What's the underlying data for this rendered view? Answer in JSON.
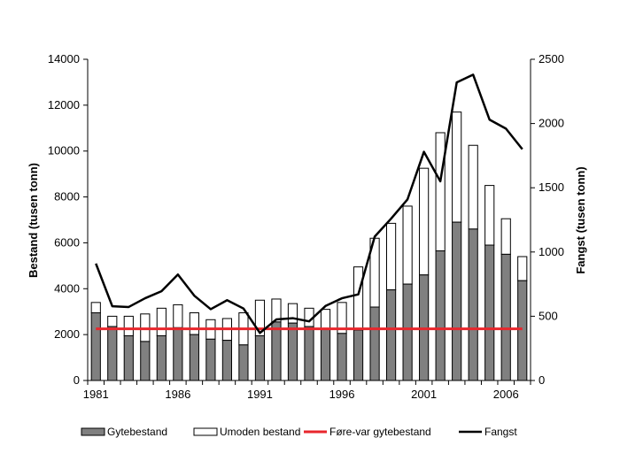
{
  "chart_data": {
    "type": "bar+line",
    "title": "",
    "ylabel_left": "Bestand (tusen tonn)",
    "ylabel_right": "Fangst (tusen tonn)",
    "ylim_left": [
      0,
      14000
    ],
    "ylim_right": [
      0,
      2500
    ],
    "yticks_left": [
      "0",
      "2000",
      "4000",
      "6000",
      "8000",
      "10000",
      "12000",
      "14000"
    ],
    "yticks_right": [
      "0",
      "500",
      "1000",
      "1500",
      "2000",
      "2500"
    ],
    "xtick_labels": [
      "1981",
      "1986",
      "1991",
      "1996",
      "2001",
      "2006"
    ],
    "grid": false,
    "legend_placement": "bottom",
    "years": [
      1981,
      1982,
      1983,
      1984,
      1985,
      1986,
      1987,
      1988,
      1989,
      1990,
      1991,
      1992,
      1993,
      1994,
      1995,
      1996,
      1997,
      1998,
      1999,
      2000,
      2001,
      2002,
      2003,
      2004,
      2005,
      2006,
      2007
    ],
    "series": [
      {
        "name": "Gytebestand",
        "kind": "bar",
        "axis": "left",
        "color": "#808080",
        "values": [
          2950,
          2350,
          1950,
          1700,
          1950,
          2300,
          2000,
          1800,
          1750,
          1550,
          1950,
          2550,
          2500,
          2350,
          2250,
          2050,
          2200,
          3200,
          3950,
          4200,
          4600,
          5650,
          6900,
          6600,
          5900,
          5500,
          4350
        ]
      },
      {
        "name": "Umoden bestand",
        "kind": "bar-stacked-total",
        "axis": "left",
        "color": "#ffffff",
        "values": [
          3400,
          2800,
          2800,
          2900,
          3150,
          3300,
          2950,
          2650,
          2700,
          2950,
          3500,
          3550,
          3350,
          3150,
          3100,
          3400,
          4950,
          6200,
          6850,
          7600,
          9250,
          10800,
          11700,
          10250,
          8500,
          7050,
          5400
        ]
      },
      {
        "name": "Føre-var gytebestand",
        "kind": "hline",
        "axis": "left",
        "color": "#e8262c",
        "value": 2250
      },
      {
        "name": "Fangst",
        "kind": "line",
        "axis": "right",
        "color": "#000000",
        "values": [
          910,
          578,
          572,
          640,
          695,
          825,
          660,
          555,
          625,
          560,
          370,
          475,
          485,
          460,
          580,
          640,
          670,
          1120,
          1260,
          1410,
          1780,
          1550,
          2320,
          2380,
          2030,
          1960,
          1800
        ]
      }
    ]
  }
}
